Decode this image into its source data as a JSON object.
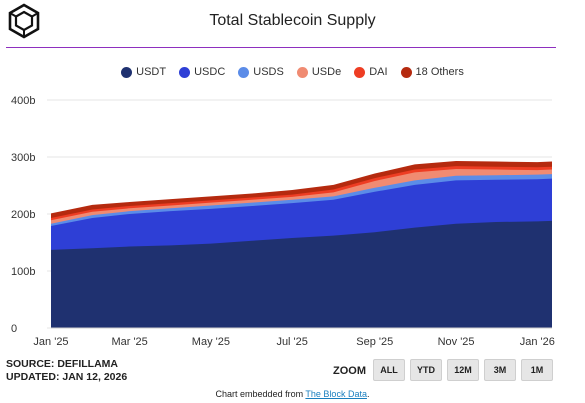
{
  "title": "Total Stablecoin Supply",
  "legend": [
    {
      "name": "USDT",
      "color": "#1f3170"
    },
    {
      "name": "USDC",
      "color": "#2e3fd6"
    },
    {
      "name": "USDS",
      "color": "#5b8ce8"
    },
    {
      "name": "USDe",
      "color": "#f08b72"
    },
    {
      "name": "DAI",
      "color": "#ee3d23"
    },
    {
      "name": "18 Others",
      "color": "#b52a0f"
    }
  ],
  "source": {
    "line1": "SOURCE: DEFILLAMA",
    "line2": "UPDATED: JAN 12, 2026"
  },
  "zoom": {
    "label": "ZOOM",
    "buttons": [
      "ALL",
      "YTD",
      "12M",
      "3M",
      "1M"
    ]
  },
  "embed": {
    "prefix": "Chart embedded from ",
    "link": "The Block Data",
    "suffix": "."
  },
  "chart_data": {
    "type": "area",
    "stacked": true,
    "title": "Total Stablecoin Supply",
    "ylim": [
      0,
      400
    ],
    "yticks": [
      "0",
      "100b",
      "200b",
      "300b",
      "400b"
    ],
    "xticks": [
      "Jan '25",
      "Mar '25",
      "May '25",
      "Jul '25",
      "Sep '25",
      "Nov '25",
      "Jan '26"
    ],
    "grid": true,
    "legend_position": "top",
    "x": [
      "Jan 1 '25",
      "Feb 1 '25",
      "Mar 1 '25",
      "Apr 1 '25",
      "May 1 '25",
      "Jun 1 '25",
      "Jul 1 '25",
      "Aug 1 '25",
      "Sep 1 '25",
      "Oct 1 '25",
      "Nov 1 '25",
      "Dec 1 '25",
      "Jan 1 '26",
      "Jan 12 '26"
    ],
    "series": [
      {
        "name": "USDT",
        "color": "#1f3170",
        "values": [
          137,
          140,
          143,
          145,
          148,
          153,
          158,
          162,
          168,
          176,
          183,
          186,
          187,
          188
        ]
      },
      {
        "name": "USDC",
        "color": "#2e3fd6",
        "values": [
          42,
          53,
          57,
          60,
          61,
          61,
          61,
          63,
          71,
          75,
          76,
          74,
          74,
          74
        ]
      },
      {
        "name": "USDS",
        "color": "#5b8ce8",
        "values": [
          4,
          5,
          5,
          5,
          6,
          6,
          6,
          6,
          7,
          8,
          8,
          8,
          8,
          8
        ]
      },
      {
        "name": "USDe",
        "color": "#f08b72",
        "values": [
          6,
          6,
          5,
          5,
          5,
          5,
          5,
          7,
          12,
          14,
          12,
          10,
          8,
          8
        ]
      },
      {
        "name": "DAI",
        "color": "#ee3d23",
        "values": [
          4,
          4,
          4,
          4,
          4,
          4,
          4,
          5,
          5,
          5,
          5,
          5,
          5,
          5
        ]
      },
      {
        "name": "18 Others",
        "color": "#b52a0f",
        "values": [
          8,
          8,
          7,
          7,
          7,
          7,
          8,
          8,
          8,
          9,
          9,
          9,
          9,
          9
        ]
      }
    ]
  }
}
